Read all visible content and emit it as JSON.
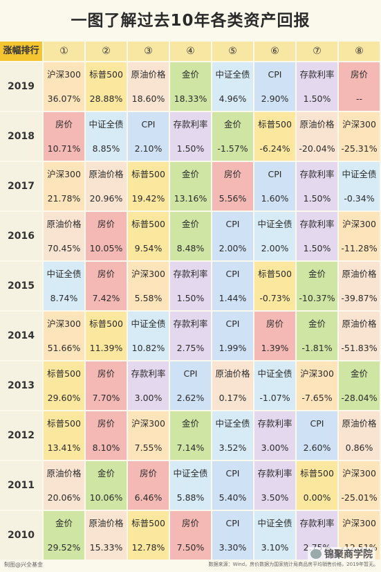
{
  "title": "一图了解过去10年各类资产回报",
  "header": {
    "rank_label": "涨幅排行",
    "ranks": [
      "①",
      "②",
      "③",
      "④",
      "⑤",
      "⑥",
      "⑦",
      "⑧"
    ]
  },
  "colors": {
    "沪深300": "#fde4ba",
    "标普500": "#fbe79e",
    "原油价格": "#f8e4d0",
    "金价": "#cfe5a4",
    "中证全债": "#d6ebf6",
    "CPI": "#cfe1f5",
    "存款利率": "#e4d8ee",
    "房价": "#f4b9b4",
    "--": "#f4b9b4"
  },
  "years": [
    {
      "year": "2019",
      "assets": [
        "沪深300",
        "标普500",
        "原油价格",
        "金价",
        "中证全债",
        "CPI",
        "存款利率",
        "房价"
      ],
      "values": [
        "36.07%",
        "28.88%",
        "18.60%",
        "18.33%",
        "4.96%",
        "2.90%",
        "1.50%",
        "--"
      ]
    },
    {
      "year": "2018",
      "assets": [
        "房价",
        "中证全债",
        "CPI",
        "存款利率",
        "金价",
        "标普500",
        "原油价格",
        "沪深300"
      ],
      "values": [
        "10.71%",
        "8.85%",
        "2.10%",
        "1.50%",
        "-1.57%",
        "-6.24%",
        "-20.04%",
        "-25.31%"
      ]
    },
    {
      "year": "2017",
      "assets": [
        "沪深300",
        "原油价格",
        "标普500",
        "金价",
        "房价",
        "CPI",
        "存款利率",
        "中证全债"
      ],
      "values": [
        "21.78%",
        "20.96%",
        "19.42%",
        "13.16%",
        "5.56%",
        "1.60%",
        "1.50%",
        "-0.34%"
      ]
    },
    {
      "year": "2016",
      "assets": [
        "原油价格",
        "房价",
        "标普500",
        "金价",
        "CPI",
        "中证全债",
        "存款利率",
        "沪深300"
      ],
      "values": [
        "70.45%",
        "10.05%",
        "9.54%",
        "8.48%",
        "2.00%",
        "2.00%",
        "1.50%",
        "-11.28%"
      ]
    },
    {
      "year": "2015",
      "assets": [
        "中证全债",
        "房价",
        "沪深300",
        "存款利率",
        "CPI",
        "标普500",
        "金价",
        "原油价格"
      ],
      "values": [
        "8.74%",
        "7.42%",
        "5.58%",
        "1.50%",
        "1.44%",
        "-0.73%",
        "-10.37%",
        "-39.87%"
      ]
    },
    {
      "year": "2014",
      "assets": [
        "沪深300",
        "标普500",
        "中证全债",
        "存款利率",
        "CPI",
        "房价",
        "金价",
        "原油价格"
      ],
      "values": [
        "51.66%",
        "11.39%",
        "10.82%",
        "2.75%",
        "1.99%",
        "1.39%",
        "-1.81%",
        "-51.83%"
      ]
    },
    {
      "year": "2013",
      "assets": [
        "标普500",
        "房价",
        "存款利率",
        "CPI",
        "原油价格",
        "中证全债",
        "沪深300",
        "金价"
      ],
      "values": [
        "29.60%",
        "7.70%",
        "3.00%",
        "2.62%",
        "0.17%",
        "-1.07%",
        "-7.65%",
        "-28.04%"
      ]
    },
    {
      "year": "2012",
      "assets": [
        "标普500",
        "房价",
        "沪深300",
        "金价",
        "中证全债",
        "存款利率",
        "CPI",
        "原油价格"
      ],
      "values": [
        "13.41%",
        "8.10%",
        "7.55%",
        "7.14%",
        "3.52%",
        "3.00%",
        "2.60%",
        "0.86%"
      ]
    },
    {
      "year": "2011",
      "assets": [
        "原油价格",
        "金价",
        "房价",
        "中证全债",
        "CPI",
        "存款利率",
        "标普500",
        "沪深300"
      ],
      "values": [
        "20.06%",
        "10.06%",
        "6.46%",
        "5.88%",
        "5.40%",
        "3.50%",
        "0.00%",
        "-25.01%"
      ]
    },
    {
      "year": "2010",
      "assets": [
        "金价",
        "原油价格",
        "标普500",
        "房价",
        "CPI",
        "中证全债",
        "存款利率",
        "沪深300"
      ],
      "values": [
        "29.52%",
        "15.33%",
        "12.78%",
        "7.50%",
        "3.30%",
        "3.10%",
        "2.75%",
        "-12.51%"
      ]
    }
  ],
  "footer": {
    "left": "制图@兴全基金",
    "right": "数据来源：Wind，房价数据为国家统计局商品房平均销售价格，2019年暂无。",
    "watermark": "锦聚商学院"
  }
}
